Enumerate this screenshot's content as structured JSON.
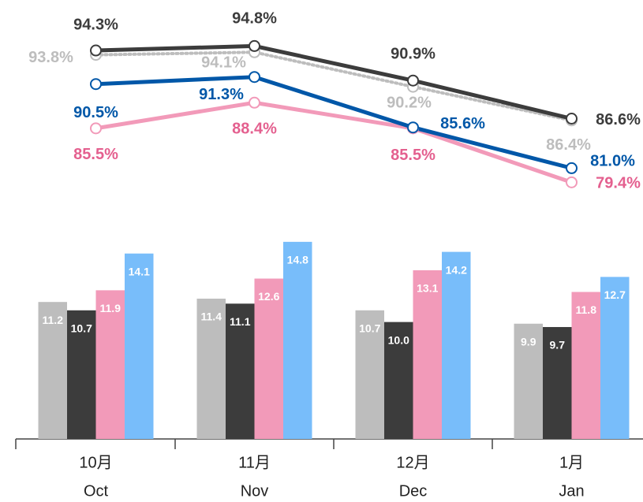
{
  "chart_data": [
    {
      "type": "line",
      "ylim": [
        77.5,
        100
      ],
      "series": [
        {
          "name": null,
          "color": "#bdbdbd",
          "label_color": "#bdbdbd",
          "dashed": true,
          "values": [
            93.8,
            94.1,
            90.2,
            86.4
          ],
          "value_labels": [
            "93.8%",
            "94.1%",
            "90.2%",
            "86.4%"
          ]
        },
        {
          "name": null,
          "color": "#3c3c3c",
          "label_color": "#3c3c3c",
          "dashed": false,
          "values": [
            94.3,
            94.8,
            90.9,
            86.6
          ],
          "value_labels": [
            "94.3%",
            "94.8%",
            "90.9%",
            "86.6%"
          ]
        },
        {
          "name": null,
          "color": "#f29ab9",
          "label_color": "#e4608f",
          "dashed": false,
          "values": [
            85.5,
            88.4,
            85.5,
            79.4
          ],
          "value_labels": [
            "85.5%",
            "88.4%",
            "85.5%",
            "79.4%"
          ]
        },
        {
          "name": null,
          "color": "#0057a8",
          "label_color": "#0057a8",
          "dashed": false,
          "values": [
            90.5,
            91.3,
            85.6,
            81.0
          ],
          "value_labels": [
            "90.5%",
            "91.3%",
            "85.6%",
            "81.0%"
          ]
        }
      ]
    },
    {
      "type": "bar",
      "categories": [
        "10月",
        "11月",
        "12月",
        "1月"
      ],
      "sub_categories": [
        "Oct",
        "Nov",
        "Dec",
        "Jan"
      ],
      "ylim": [
        3,
        16.2
      ],
      "series": [
        {
          "name": null,
          "color": "#bdbdbd",
          "values": [
            11.2,
            11.4,
            10.7,
            9.9
          ],
          "value_labels": [
            "11.2",
            "11.4",
            "10.7",
            "9.9"
          ]
        },
        {
          "name": null,
          "color": "#3c3c3c",
          "values": [
            10.7,
            11.1,
            10.0,
            9.7
          ],
          "value_labels": [
            "10.7",
            "11.1",
            "10.0",
            "9.7"
          ]
        },
        {
          "name": null,
          "color": "#f29ab9",
          "values": [
            11.9,
            12.6,
            13.1,
            11.8
          ],
          "value_labels": [
            "11.9",
            "12.6",
            "13.1",
            "11.8"
          ]
        },
        {
          "name": null,
          "color": "#78bdfa",
          "values": [
            14.1,
            14.8,
            14.2,
            12.7
          ],
          "value_labels": [
            "14.1",
            "14.8",
            "14.2",
            "12.7"
          ]
        }
      ]
    }
  ]
}
